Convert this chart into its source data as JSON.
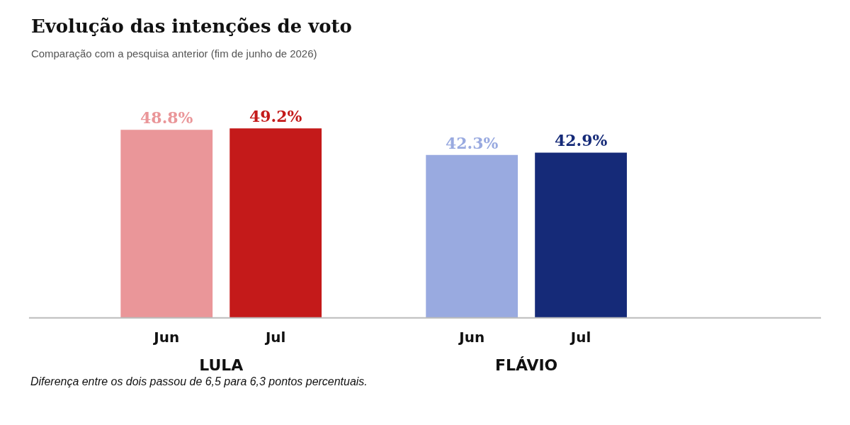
{
  "chart_data": {
    "type": "bar",
    "title": "Evolução das intenções de voto",
    "subtitle": "Comparação com a pesquisa anterior (fim de junho de 2026)",
    "categories": [
      "Jun",
      "Jul",
      "Jun",
      "Jul"
    ],
    "values": [
      48.8,
      49.2,
      42.3,
      42.9
    ],
    "colors": [
      "#ea9699",
      "#c41a1a",
      "#99aae0",
      "#152a78"
    ],
    "value_labels": [
      "48.8%",
      "49.2%",
      "42.3%",
      "42.9%"
    ],
    "annotations": [
      "LULA",
      "FLÁVIO",
      "Diferença entre os dois passou de 6,5 para 6,3 pontos percentuais."
    ]
  }
}
